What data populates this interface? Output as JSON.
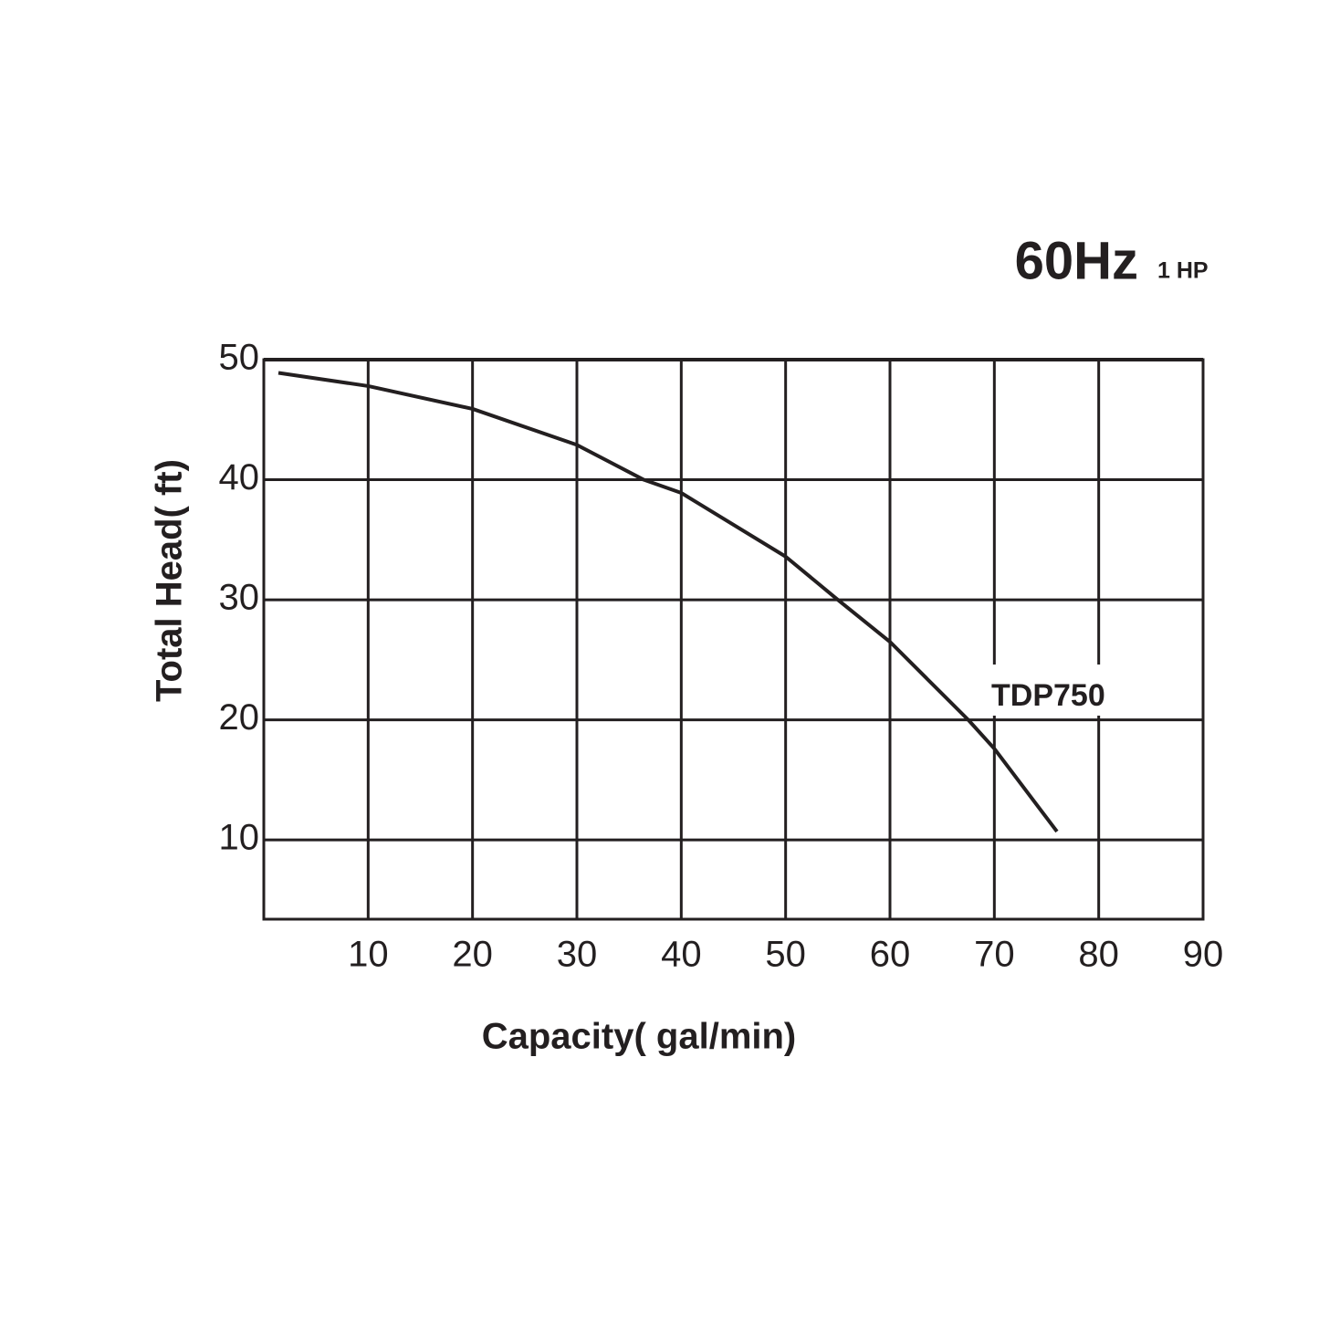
{
  "chart_data": {
    "type": "line",
    "title": "60Hz",
    "subtitle": "1 HP",
    "x_label": "Capacity( gal/min)",
    "y_label": "Total Head( ft)",
    "series": [
      {
        "name": "TDP750",
        "color": "#231f20",
        "x": [
          1.4,
          10,
          20,
          30,
          36.4,
          40,
          50,
          55,
          60,
          67.5,
          70,
          76
        ],
        "values": [
          48.9,
          47.8,
          45.9,
          42.9,
          40,
          38.9,
          33.6,
          30,
          26.5,
          20,
          17.6,
          10.7
        ]
      }
    ],
    "xlim": [
      0,
      90
    ],
    "xticks": [
      10,
      20,
      30,
      40,
      50,
      60,
      70,
      80,
      90
    ],
    "ylim": [
      3.4,
      50
    ],
    "yticks": [
      10,
      20,
      30,
      40,
      50
    ],
    "grid": true
  }
}
